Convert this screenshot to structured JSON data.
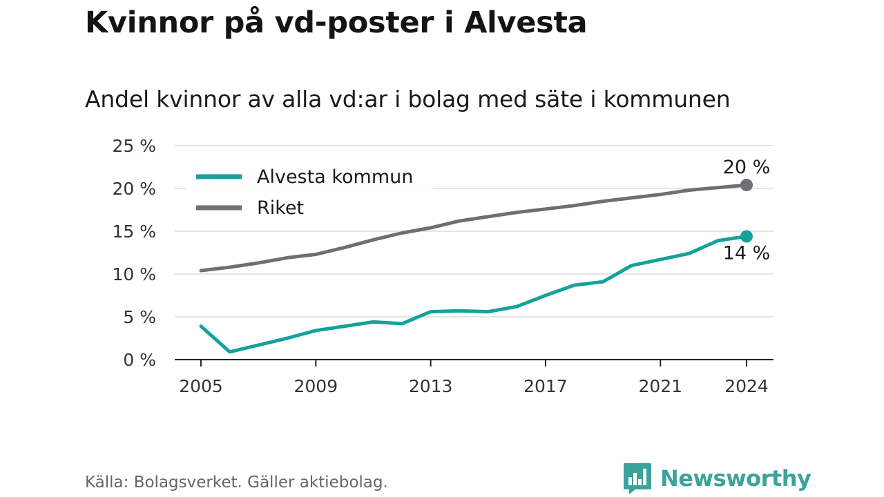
{
  "header": {
    "title": "Kvinnor på vd-poster i Alvesta",
    "subtitle": "Andel kvinnor av alla vd:ar i bolag med säte i kommunen"
  },
  "footer": {
    "source": "Källa: Bolagsverket. Gäller aktiebolag.",
    "brand": "Newsworthy",
    "brand_icon": "bar-chart-speech-bubble-icon"
  },
  "colors": {
    "alvesta": "#14a39a",
    "riket": "#6e6e74",
    "brand": "#3aa39b",
    "grid": "#dcdcdc",
    "axis": "#222222"
  },
  "chart_data": {
    "type": "line",
    "title": "",
    "xlabel": "",
    "ylabel": "",
    "x": [
      2005,
      2006,
      2007,
      2008,
      2009,
      2010,
      2011,
      2012,
      2013,
      2014,
      2015,
      2016,
      2017,
      2018,
      2019,
      2020,
      2021,
      2022,
      2023,
      2024
    ],
    "xticks": [
      2005,
      2009,
      2013,
      2017,
      2021,
      2024
    ],
    "xtick_labels": [
      "2005",
      "2009",
      "2013",
      "2017",
      "2021",
      "2024"
    ],
    "xlim": [
      2005,
      2024
    ],
    "ylim": [
      0,
      25
    ],
    "yticks": [
      0,
      5,
      10,
      15,
      20,
      25
    ],
    "ytick_labels": [
      "0 %",
      "5 %",
      "10 %",
      "15 %",
      "20 %",
      "25 %"
    ],
    "grid": true,
    "legend_position": "top-left",
    "series": [
      {
        "name": "Alvesta kommun",
        "color": "#14a39a",
        "values": [
          3.9,
          0.9,
          1.7,
          2.5,
          3.4,
          3.9,
          4.4,
          4.2,
          5.6,
          5.7,
          5.6,
          6.2,
          7.5,
          8.7,
          9.1,
          11.0,
          11.7,
          12.4,
          13.9,
          14.4
        ],
        "end_label": "14 %"
      },
      {
        "name": "Riket",
        "color": "#6e6e74",
        "values": [
          10.4,
          10.8,
          11.3,
          11.9,
          12.3,
          13.1,
          14.0,
          14.8,
          15.4,
          16.2,
          16.7,
          17.2,
          17.6,
          18.0,
          18.5,
          18.9,
          19.3,
          19.8,
          20.1,
          20.4
        ],
        "end_label": "20 %"
      }
    ]
  }
}
